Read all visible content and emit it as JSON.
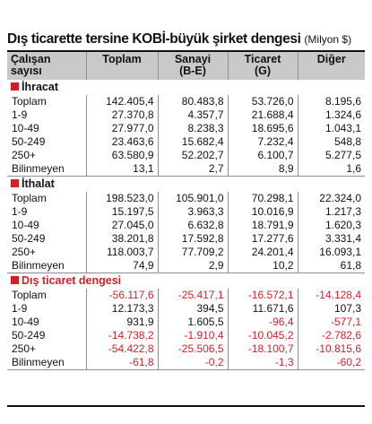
{
  "title": {
    "main": "Dış ticarette tersine KOBİ-büyük şirket dengesi",
    "unit": "(Milyon $)"
  },
  "headers": [
    {
      "line1": "Çalışan",
      "line2": "sayısı"
    },
    {
      "line1": "Toplam",
      "line2": ""
    },
    {
      "line1": "Sanayi",
      "line2": "(B-E)"
    },
    {
      "line1": "Ticaret",
      "line2": "(G)"
    },
    {
      "line1": "Diğer",
      "line2": ""
    }
  ],
  "sections": [
    {
      "label": "İhracat",
      "rows": [
        {
          "name": "Toplam",
          "values": [
            "142.405,4",
            "80.483,8",
            "53.726,0",
            "8.195,6"
          ]
        },
        {
          "name": "1-9",
          "values": [
            "27.370,8",
            "4.357,7",
            "21.688,4",
            "1.324,6"
          ]
        },
        {
          "name": "10-49",
          "values": [
            "27.977,0",
            "8.238,3",
            "18.695,6",
            "1.043,1"
          ]
        },
        {
          "name": "50-249",
          "values": [
            "23.463,6",
            "15.682,4",
            "7.232,4",
            "548,8"
          ]
        },
        {
          "name": "250+",
          "values": [
            "63.580,9",
            "52.202,7",
            "6.100,7",
            "5.277,5"
          ]
        },
        {
          "name": "Bilinmeyen",
          "values": [
            "13,1",
            "2,7",
            "8,9",
            "1,6"
          ]
        }
      ]
    },
    {
      "label": "İthalat",
      "rows": [
        {
          "name": "Toplam",
          "values": [
            "198.523,0",
            "105.901,0",
            "70.298,1",
            "22.324,0"
          ]
        },
        {
          "name": "1-9",
          "values": [
            "15.197,5",
            "3.963,3",
            "10.016,9",
            "1.217,3"
          ]
        },
        {
          "name": "10-49",
          "values": [
            "27.045,0",
            "6.632,8",
            "18.791,9",
            "1.620,3"
          ]
        },
        {
          "name": "50-249",
          "values": [
            "38.201,8",
            "17.592,8",
            "17.277,6",
            "3.331,4"
          ]
        },
        {
          "name": "250+",
          "values": [
            "118.003,7",
            "77.709,2",
            "24.201,4",
            "16.093,1"
          ]
        },
        {
          "name": "Bilinmeyen",
          "values": [
            "74,9",
            "2,9",
            "10,2",
            "61,8"
          ]
        }
      ]
    },
    {
      "label": "Dış ticaret dengesi",
      "rows": [
        {
          "name": "Toplam",
          "values": [
            "-56.117,6",
            "-25.417,1",
            "-16.572,1",
            "-14.128,4"
          ]
        },
        {
          "name": "1-9",
          "values": [
            "12.173,3",
            "394,5",
            "11.671,6",
            "107,3"
          ]
        },
        {
          "name": "10-49",
          "values": [
            "931,9",
            "1.605,5",
            "-96,4",
            "-577,1"
          ]
        },
        {
          "name": "50-249",
          "values": [
            "-14.738,2",
            "-1.910,4",
            "-10.045,2",
            "-2.782,6"
          ]
        },
        {
          "name": "250+",
          "values": [
            "-54.422,8",
            "-25.506,5",
            "-18.100,7",
            "-10.815,6"
          ]
        },
        {
          "name": "Bilinmeyen",
          "values": [
            "-61,8",
            "-0,2",
            "-1,3",
            "-60,2"
          ]
        }
      ]
    }
  ],
  "colors": {
    "accent_red": "#d31f26",
    "header_bg": "#c9c9c9",
    "rule": "#8e8e8e"
  }
}
